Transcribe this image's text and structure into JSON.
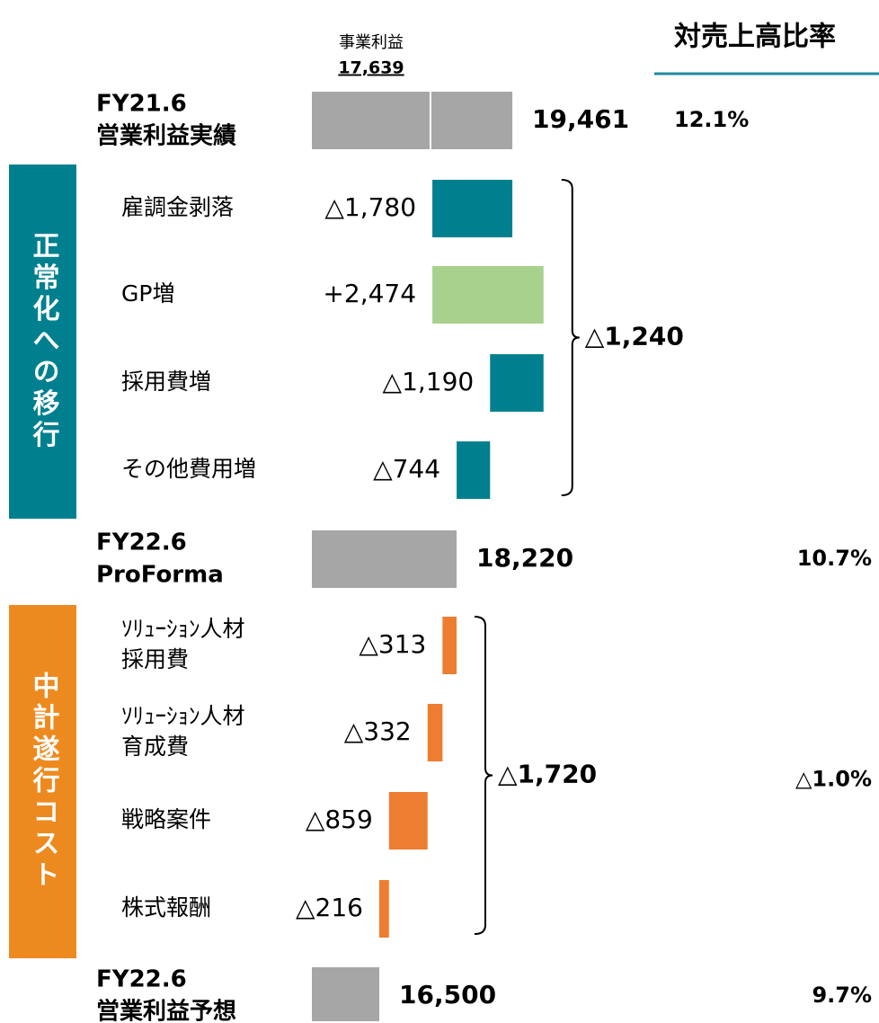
{
  "chart_data": {
    "type": "waterfall",
    "ratio_header": "対売上高比率",
    "xlim": [
      15000,
      20000
    ],
    "total_color": "#a6a6a6",
    "marker": {
      "name": "事業利益",
      "value": 17639,
      "label": "17,639"
    },
    "totals": [
      {
        "name_lines": [
          "FY21.6",
          "営業利益実績"
        ],
        "value": 19461,
        "value_label": "19,461",
        "ratio": 12.1,
        "ratio_label": "12.1%"
      },
      {
        "name_lines": [
          "FY22.6",
          "ProForma"
        ],
        "value": 18220,
        "value_label": "18,220",
        "ratio": 10.7,
        "ratio_label": "10.7%"
      },
      {
        "name_lines": [
          "FY22.6",
          "営業利益予想"
        ],
        "value": 16500,
        "value_label": "16,500",
        "ratio": 9.7,
        "ratio_label": "9.7%"
      }
    ],
    "groups": [
      {
        "name": "正常化への移行",
        "color": "#00808f",
        "bracket_total": -1240,
        "bracket_label": "△1,240",
        "items": [
          {
            "name_lines": [
              "雇調金剥落"
            ],
            "value": -1780,
            "value_label": "△1,780",
            "color": "#00808f"
          },
          {
            "name_lines": [
              "GP増"
            ],
            "value": 2474,
            "value_label": "+2,474",
            "color": "#a9d18e"
          },
          {
            "name_lines": [
              "採用費増"
            ],
            "value": -1190,
            "value_label": "△1,190",
            "color": "#00808f"
          },
          {
            "name_lines": [
              "その他費用増"
            ],
            "value": -744,
            "value_label": "△744",
            "color": "#00808f"
          }
        ]
      },
      {
        "name": "中計遂行コスト",
        "color": "#ed8a1f",
        "bracket_total": -1720,
        "bracket_label": "△1,720",
        "ratio": -1.0,
        "ratio_label": "△1.0%",
        "items": [
          {
            "name_lines": [
              "ｿﾘｭｰｼｮﾝ人材",
              "採用費"
            ],
            "value": -313,
            "value_label": "△313",
            "color": "#ed7d31"
          },
          {
            "name_lines": [
              "ｿﾘｭｰｼｮﾝ人材",
              "育成費"
            ],
            "value": -332,
            "value_label": "△332",
            "color": "#ed7d31"
          },
          {
            "name_lines": [
              "戦略案件"
            ],
            "value": -859,
            "value_label": "△859",
            "color": "#ed7d31"
          },
          {
            "name_lines": [
              "株式報酬"
            ],
            "value": -216,
            "value_label": "△216",
            "color": "#ed7d31"
          }
        ]
      }
    ]
  }
}
